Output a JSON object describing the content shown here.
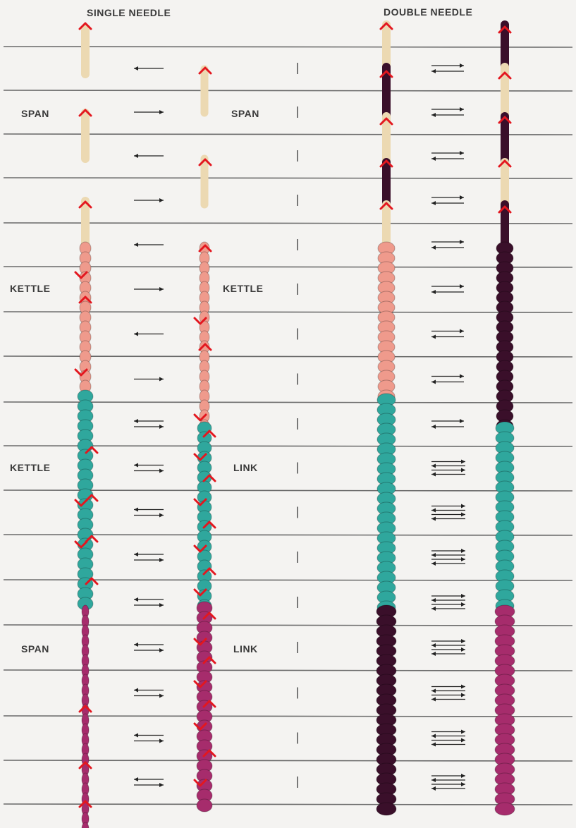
{
  "headings": {
    "single": "SINGLE NEEDLE",
    "double": "DOUBLE NEEDLE"
  },
  "left_labels": [
    "SPAN",
    "KETTLE",
    "KETTLE",
    "SPAN"
  ],
  "middle_labels": [
    "SPAN",
    "KETTLE",
    "LINK",
    "LINK"
  ],
  "colors": {
    "background": "#f4f3f1",
    "rule_line": "#6a6a6a",
    "marker": "#e3171f",
    "yarn_cream": "#ecd9b2",
    "yarn_pink": "#ef9a8c",
    "yarn_teal": "#2fa79d",
    "yarn_magenta": "#a62c6c",
    "yarn_dark": "#3a0f2a"
  }
}
